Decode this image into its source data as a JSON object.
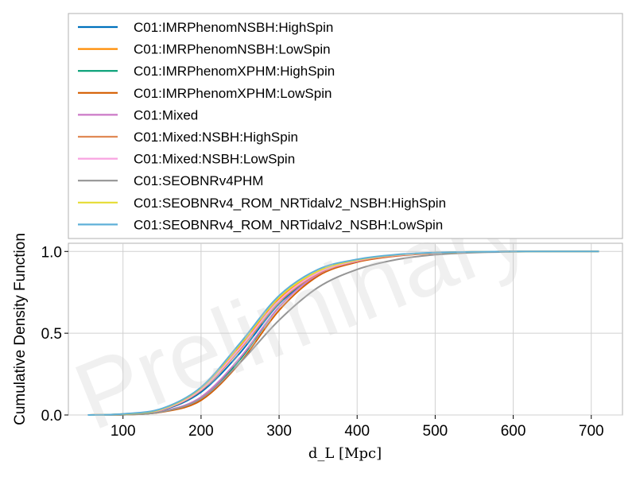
{
  "chart_data": {
    "type": "line",
    "title": "",
    "watermark": "Preliminary",
    "xlabel": "d_L [Mpc]",
    "ylabel": "Cumulative Density Function",
    "xlim": [
      30,
      740
    ],
    "ylim": [
      0,
      1.05
    ],
    "xticks": [
      100,
      200,
      300,
      400,
      500,
      600,
      700
    ],
    "yticks": [
      0.0,
      0.5,
      1.0
    ],
    "xtick_labels": [
      "100",
      "200",
      "300",
      "400",
      "500",
      "600",
      "700"
    ],
    "ytick_labels": [
      "0.0",
      "0.5",
      "1.0"
    ],
    "grid": true,
    "legend_position": "above-plot",
    "x": [
      55,
      100,
      150,
      200,
      250,
      300,
      350,
      400,
      450,
      500,
      550,
      600,
      650,
      710
    ],
    "series": [
      {
        "name": "C01:IMRPhenomNSBH:HighSpin",
        "color": "#0072bd",
        "values": [
          0,
          0.005,
          0.03,
          0.14,
          0.38,
          0.68,
          0.86,
          0.94,
          0.975,
          0.99,
          0.997,
          1.0,
          1.0,
          1.0
        ]
      },
      {
        "name": "C01:IMRPhenomNSBH:LowSpin",
        "color": "#ff8c00",
        "values": [
          0,
          0.006,
          0.035,
          0.16,
          0.42,
          0.71,
          0.87,
          0.945,
          0.978,
          0.992,
          0.998,
          1.0,
          1.0,
          1.0
        ]
      },
      {
        "name": "C01:IMRPhenomXPHM:HighSpin",
        "color": "#009e73",
        "values": [
          0,
          0.002,
          0.02,
          0.1,
          0.34,
          0.66,
          0.86,
          0.94,
          0.975,
          0.99,
          0.997,
          1.0,
          1.0,
          1.0
        ]
      },
      {
        "name": "C01:IMRPhenomXPHM:LowSpin",
        "color": "#d55e00",
        "values": [
          0,
          0.002,
          0.018,
          0.09,
          0.32,
          0.64,
          0.85,
          0.935,
          0.972,
          0.989,
          0.997,
          1.0,
          1.0,
          1.0
        ]
      },
      {
        "name": "C01:Mixed",
        "color": "#cc79c7",
        "values": [
          0,
          0.003,
          0.022,
          0.11,
          0.35,
          0.66,
          0.86,
          0.94,
          0.975,
          0.99,
          0.997,
          1.0,
          1.0,
          1.0
        ]
      },
      {
        "name": "C01:Mixed:NSBH:HighSpin",
        "color": "#e08a55",
        "values": [
          0,
          0.005,
          0.032,
          0.15,
          0.4,
          0.69,
          0.865,
          0.942,
          0.976,
          0.991,
          0.997,
          1.0,
          1.0,
          1.0
        ]
      },
      {
        "name": "C01:Mixed:NSBH:LowSpin",
        "color": "#f9a3e0",
        "values": [
          0,
          0.005,
          0.033,
          0.155,
          0.41,
          0.7,
          0.87,
          0.944,
          0.977,
          0.991,
          0.998,
          1.0,
          1.0,
          1.0
        ]
      },
      {
        "name": "C01:SEOBNRv4PHM",
        "color": "#959595",
        "values": [
          0,
          0.002,
          0.02,
          0.1,
          0.32,
          0.58,
          0.78,
          0.89,
          0.95,
          0.98,
          0.993,
          0.998,
          1.0,
          1.0
        ]
      },
      {
        "name": "C01:SEOBNRv4_ROM_NRTidalv2_NSBH:HighSpin",
        "color": "#e6dc32",
        "values": [
          0,
          0.006,
          0.036,
          0.165,
          0.43,
          0.72,
          0.88,
          0.948,
          0.979,
          0.992,
          0.998,
          1.0,
          1.0,
          1.0
        ]
      },
      {
        "name": "C01:SEOBNRv4_ROM_NRTidalv2_NSBH:LowSpin",
        "color": "#5fb0d8",
        "values": [
          0,
          0.007,
          0.04,
          0.17,
          0.44,
          0.73,
          0.89,
          0.952,
          0.981,
          0.993,
          0.998,
          1.0,
          1.0,
          1.0
        ]
      }
    ]
  }
}
